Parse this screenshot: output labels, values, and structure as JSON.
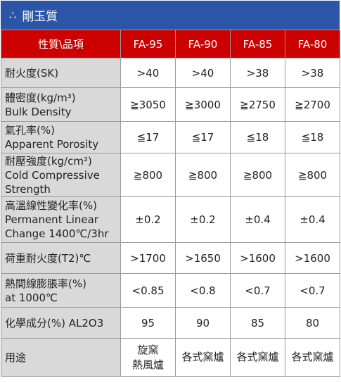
{
  "title": {
    "symbol": "∴",
    "text": "剛玉質"
  },
  "header": {
    "property": "性質\\品項",
    "grades": [
      "FA-95",
      "FA-90",
      "FA-85",
      "FA-80"
    ]
  },
  "rows": [
    {
      "label_lines": [
        "耐火度(SK)"
      ],
      "values": [
        ">40",
        ">40",
        ">38",
        ">38"
      ]
    },
    {
      "label_lines": [
        "體密度(kg/m³)",
        "Bulk Density"
      ],
      "values": [
        "≧3050",
        "≧3000",
        "≧2750",
        "≧2700"
      ]
    },
    {
      "label_lines": [
        "氣孔率(%)",
        "Apparent Porosity"
      ],
      "values": [
        "≦17",
        "≦17",
        "≦18",
        "≦18"
      ]
    },
    {
      "label_lines": [
        "耐壓強度(kg/cm²)",
        "Cold Compressive",
        "Strength"
      ],
      "values": [
        "≧800",
        "≧800",
        "≧800",
        "≧800"
      ]
    },
    {
      "label_lines": [
        "高溫線性變化率(%)",
        "Permanent Linear",
        "Change  1400℃/3hr"
      ],
      "values": [
        "±0.2",
        "±0.2",
        "±0.4",
        "±0.4"
      ]
    },
    {
      "label_lines": [
        "荷重耐火度(T2)℃"
      ],
      "values": [
        ">1700",
        ">1650",
        ">1600",
        ">1600"
      ]
    },
    {
      "label_lines": [
        "熱間線膨脹率(%)",
        "at 1000℃"
      ],
      "values": [
        "<0.85",
        "<0.8",
        "<0.7",
        "<0.7"
      ]
    },
    {
      "label_lines": [
        "化學成分(%) AL2O3"
      ],
      "values": [
        "95",
        "90",
        "85",
        "80"
      ]
    },
    {
      "label_lines": [
        "用途"
      ],
      "values": [
        "旋窯\n熱風爐",
        "各式窯爐",
        "各式窯爐",
        "各式窯爐"
      ]
    }
  ]
}
